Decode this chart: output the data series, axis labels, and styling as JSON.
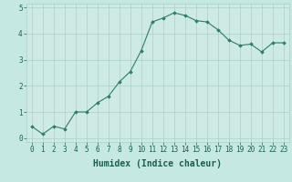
{
  "x": [
    0,
    1,
    2,
    3,
    4,
    5,
    6,
    7,
    8,
    9,
    10,
    11,
    12,
    13,
    14,
    15,
    16,
    17,
    18,
    19,
    20,
    21,
    22,
    23
  ],
  "y": [
    0.45,
    0.15,
    0.45,
    0.35,
    1.0,
    1.0,
    1.35,
    1.6,
    2.15,
    2.55,
    3.35,
    4.45,
    4.6,
    4.8,
    4.7,
    4.5,
    4.45,
    4.15,
    3.75,
    3.55,
    3.6,
    3.3,
    3.65,
    3.65
  ],
  "line_color": "#2d7d6e",
  "marker": "D",
  "markersize": 1.8,
  "linewidth": 0.8,
  "xlabel": "Humidex (Indice chaleur)",
  "xlabel_fontsize": 7,
  "xlabel_color": "#1a5f52",
  "ylim": [
    -0.15,
    5.15
  ],
  "xlim": [
    -0.5,
    23.5
  ],
  "yticks": [
    0,
    1,
    2,
    3,
    4,
    5
  ],
  "xticks": [
    0,
    1,
    2,
    3,
    4,
    5,
    6,
    7,
    8,
    9,
    10,
    11,
    12,
    13,
    14,
    15,
    16,
    17,
    18,
    19,
    20,
    21,
    22,
    23
  ],
  "tick_fontsize": 5.5,
  "tick_color": "#1a5f52",
  "background_color": "#c5e8e2",
  "grid_color": "#aad0c8",
  "grid_linewidth": 0.5,
  "plot_background": "#cdeae4"
}
